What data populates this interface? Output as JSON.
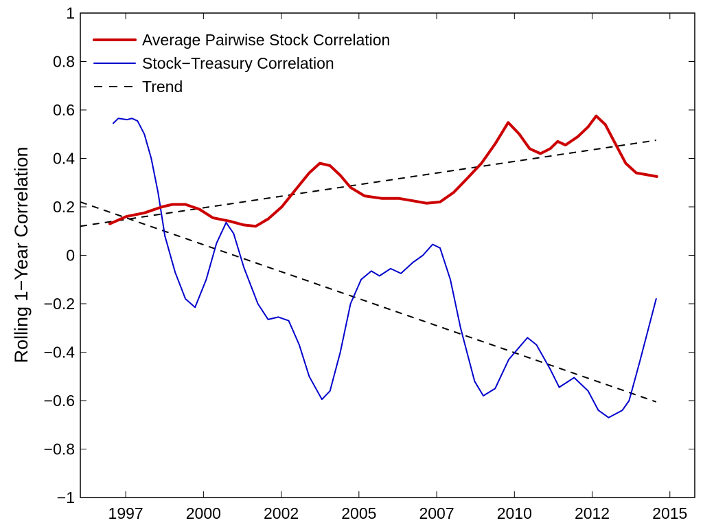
{
  "chart_data": {
    "type": "line",
    "title": "",
    "xlabel": "",
    "ylabel": "Rolling 1−Year Correlation",
    "xlim": [
      1996.04,
      2015.8
    ],
    "ylim": [
      -1,
      1
    ],
    "grid": false,
    "legend_position": "top-left",
    "x_ticks": [
      {
        "value": 1997.5,
        "label": "1997"
      },
      {
        "value": 2000.0,
        "label": "2000"
      },
      {
        "value": 2002.5,
        "label": "2002"
      },
      {
        "value": 2005.0,
        "label": "2005"
      },
      {
        "value": 2007.5,
        "label": "2007"
      },
      {
        "value": 2010.0,
        "label": "2010"
      },
      {
        "value": 2012.5,
        "label": "2012"
      },
      {
        "value": 2015.0,
        "label": "2015"
      }
    ],
    "y_ticks": [
      {
        "value": 1,
        "label": "1"
      },
      {
        "value": 0.8,
        "label": "0.8"
      },
      {
        "value": 0.6,
        "label": "0.6"
      },
      {
        "value": 0.4,
        "label": "0.4"
      },
      {
        "value": 0.2,
        "label": "0.2"
      },
      {
        "value": 0,
        "label": "0"
      },
      {
        "value": -0.2,
        "label": "−0.2"
      },
      {
        "value": -0.4,
        "label": "−0.4"
      },
      {
        "value": -0.6,
        "label": "−0.6"
      },
      {
        "value": -0.8,
        "label": "−0.8"
      },
      {
        "value": -1,
        "label": "−1"
      }
    ],
    "series": [
      {
        "name": "Average Pairwise Stock Correlation",
        "color": "#cc0000",
        "style": "solid-thick",
        "x": [
          1996.99,
          1997.52,
          1998.1,
          1998.67,
          1999.0,
          1999.42,
          1999.87,
          2000.3,
          2000.86,
          2001.3,
          2001.68,
          2002.08,
          2002.52,
          2002.96,
          2003.4,
          2003.74,
          2004.07,
          2004.4,
          2004.73,
          2005.18,
          2005.73,
          2006.28,
          2006.73,
          2007.17,
          2007.61,
          2008.05,
          2008.5,
          2008.94,
          2009.38,
          2009.8,
          2010.16,
          2010.49,
          2010.84,
          2011.15,
          2011.39,
          2011.64,
          2012.04,
          2012.37,
          2012.63,
          2012.92,
          2013.25,
          2013.58,
          2013.92,
          2014.58
        ],
        "values": [
          0.13,
          0.16,
          0.175,
          0.2,
          0.21,
          0.21,
          0.19,
          0.155,
          0.14,
          0.125,
          0.12,
          0.15,
          0.2,
          0.27,
          0.34,
          0.38,
          0.37,
          0.33,
          0.28,
          0.245,
          0.235,
          0.235,
          0.225,
          0.215,
          0.22,
          0.26,
          0.32,
          0.38,
          0.46,
          0.548,
          0.5,
          0.44,
          0.42,
          0.44,
          0.47,
          0.455,
          0.49,
          0.53,
          0.575,
          0.54,
          0.46,
          0.38,
          0.34,
          0.325
        ]
      },
      {
        "name": "Stock−Treasury Correlation",
        "color": "#0000cc",
        "style": "solid",
        "x": [
          1997.1,
          1997.26,
          1997.54,
          1997.7,
          1997.88,
          1998.1,
          1998.32,
          1998.54,
          1998.76,
          1999.09,
          1999.42,
          1999.73,
          2000.09,
          2000.42,
          2000.73,
          2000.97,
          2001.3,
          2001.75,
          2002.08,
          2002.41,
          2002.74,
          2003.08,
          2003.4,
          2003.81,
          2004.07,
          2004.4,
          2004.73,
          2005.07,
          2005.4,
          2005.66,
          2006.02,
          2006.35,
          2006.73,
          2007.06,
          2007.37,
          2007.61,
          2007.94,
          2008.27,
          2008.72,
          2009.0,
          2009.38,
          2009.82,
          2010.42,
          2010.71,
          2011.15,
          2011.44,
          2011.92,
          2012.37,
          2012.7,
          2013.03,
          2013.47,
          2013.69,
          2014.03,
          2014.56
        ],
        "values": [
          0.545,
          0.565,
          0.56,
          0.565,
          0.555,
          0.5,
          0.4,
          0.26,
          0.08,
          -0.07,
          -0.18,
          -0.215,
          -0.1,
          0.05,
          0.135,
          0.09,
          -0.05,
          -0.2,
          -0.265,
          -0.255,
          -0.27,
          -0.37,
          -0.5,
          -0.595,
          -0.56,
          -0.4,
          -0.2,
          -0.1,
          -0.065,
          -0.085,
          -0.055,
          -0.075,
          -0.03,
          0.0,
          0.045,
          0.03,
          -0.1,
          -0.3,
          -0.52,
          -0.58,
          -0.55,
          -0.43,
          -0.34,
          -0.37,
          -0.47,
          -0.545,
          -0.505,
          -0.56,
          -0.64,
          -0.67,
          -0.64,
          -0.6,
          -0.44,
          -0.18
        ]
      },
      {
        "name": "Trend",
        "color": "#000000",
        "style": "dashed",
        "x": [
          1996.04,
          2014.56
        ],
        "values": [
          0.12,
          0.475
        ]
      },
      {
        "name": "Trend (Stock−Treasury)",
        "color": "#000000",
        "style": "dashed",
        "legend": false,
        "x": [
          1996.04,
          2014.56
        ],
        "values": [
          0.22,
          -0.605
        ]
      }
    ],
    "legend": [
      {
        "label": "Average Pairwise Stock Correlation",
        "color": "#cc0000",
        "style": "solid-thick"
      },
      {
        "label": "Stock−Treasury Correlation",
        "color": "#0000cc",
        "style": "solid"
      },
      {
        "label": "Trend",
        "color": "#000000",
        "style": "dashed"
      }
    ]
  }
}
